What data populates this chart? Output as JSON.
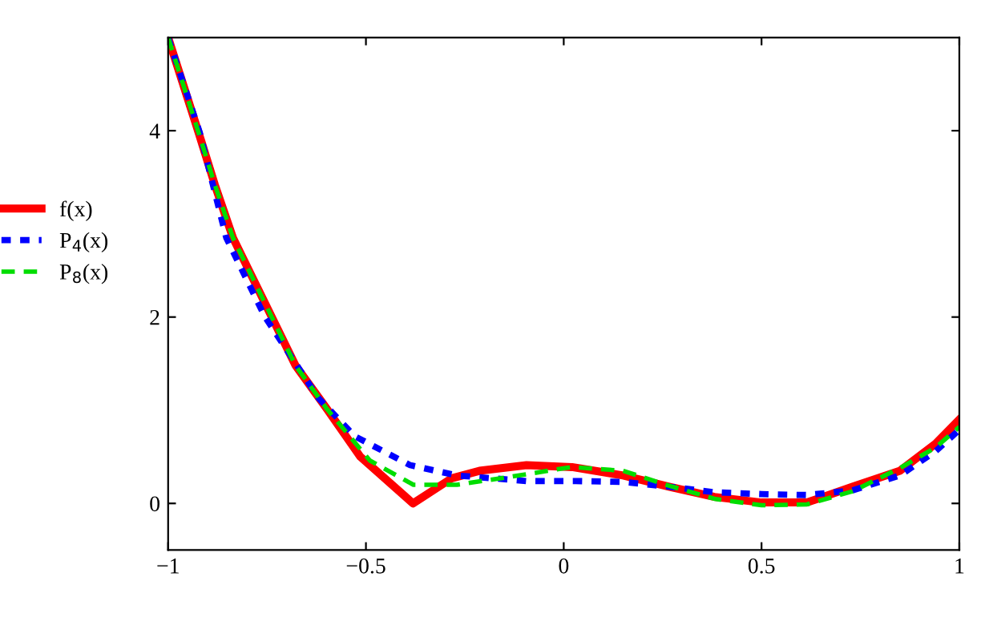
{
  "chart_data": {
    "type": "line",
    "xlim": [
      -1,
      1
    ],
    "ylim": [
      -0.5,
      5
    ],
    "xticks": [
      {
        "value": -1,
        "label": "−1"
      },
      {
        "value": -0.5,
        "label": "−0.5"
      },
      0,
      0.5,
      1
    ],
    "yticks": [
      0,
      2,
      4
    ],
    "grid": false,
    "legend": "left",
    "series": [
      {
        "name": "f(x)",
        "color": "#ff0000",
        "line_style": "solid",
        "x": [
          -1,
          -0.923,
          -0.882,
          -0.836,
          -0.738,
          -0.678,
          -0.598,
          -0.514,
          -0.381,
          -0.283,
          -0.213,
          -0.094,
          0.021,
          0.15,
          0.266,
          0.381,
          0.5,
          0.615,
          0.731,
          0.85,
          0.94,
          1
        ],
        "values": [
          5.0,
          3.98,
          3.42,
          2.85,
          2.0,
          1.48,
          1.01,
          0.5,
          0.0,
          0.27,
          0.35,
          0.41,
          0.39,
          0.3,
          0.18,
          0.07,
          0.01,
          0.01,
          0.18,
          0.35,
          0.64,
          0.9
        ]
      },
      {
        "name": "P$_{4}$(x)",
        "color": "#0000ff",
        "line_style": "dotted",
        "x": [
          -1,
          -0.92,
          -0.853,
          -0.755,
          -0.62,
          -0.528,
          -0.388,
          -0.27,
          -0.094,
          0.03,
          0.15,
          0.266,
          0.381,
          0.5,
          0.615,
          0.73,
          0.85,
          0.94,
          1
        ],
        "values": [
          5.0,
          3.98,
          2.85,
          2.0,
          1.13,
          0.72,
          0.41,
          0.3,
          0.24,
          0.24,
          0.23,
          0.18,
          0.12,
          0.1,
          0.09,
          0.14,
          0.3,
          0.56,
          0.79
        ]
      },
      {
        "name": "P$_{8}$(x)",
        "color": "#00dd00",
        "line_style": "dashed",
        "x": [
          -1,
          -0.923,
          -0.882,
          -0.836,
          -0.738,
          -0.678,
          -0.598,
          -0.49,
          -0.38,
          -0.27,
          -0.143,
          0.02,
          0.15,
          0.266,
          0.381,
          0.5,
          0.615,
          0.73,
          0.85,
          0.94,
          1
        ],
        "values": [
          5.0,
          3.98,
          3.42,
          2.85,
          2.0,
          1.48,
          1.01,
          0.46,
          0.2,
          0.2,
          0.28,
          0.39,
          0.35,
          0.19,
          0.05,
          -0.02,
          -0.01,
          0.13,
          0.38,
          0.6,
          0.82
        ]
      }
    ]
  }
}
